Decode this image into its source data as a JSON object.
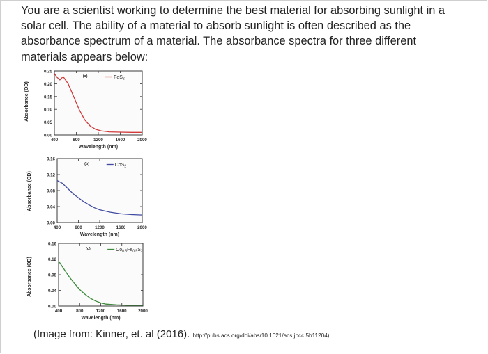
{
  "question_lines": [
    "You are a scientist working to determine the best material for absorbing sunlight in a",
    "solar cell. The ability of a material to absorb sunlight is often described as the",
    "absorbance spectrum of a material. The absorbance spectra for three different",
    "materials appears below:"
  ],
  "caption": {
    "text": "(Image from: Kinner, et. al (2016).",
    "link": "http://pubs.acs.org/doi/abs/10.1021/acs.jpcc.5b11204)"
  },
  "colors": {
    "fes2": "#d03a3a",
    "cos2": "#3f4aa0",
    "coxfe": "#3c8a3a"
  },
  "chart_data": [
    {
      "type": "line",
      "panel_label": "(a)",
      "xlabel": "Wavelength (nm)",
      "ylabel": "Absorbance (OD)",
      "xlim": [
        400,
        2000
      ],
      "ylim": [
        0,
        0.25
      ],
      "x_ticks": [
        "400",
        "800",
        "1200",
        "1600",
        "2000"
      ],
      "y_ticks": [
        "0.25",
        "0.20",
        "0.15",
        "0.10",
        "0.05",
        "0.00"
      ],
      "series": [
        {
          "name": "FeS2",
          "x": [
            400,
            450,
            500,
            560,
            650,
            750,
            850,
            950,
            1050,
            1150,
            1250,
            1400,
            1600,
            1800,
            2000
          ],
          "y": [
            0.24,
            0.225,
            0.215,
            0.228,
            0.2,
            0.15,
            0.1,
            0.06,
            0.035,
            0.022,
            0.016,
            0.012,
            0.011,
            0.01,
            0.01
          ]
        }
      ]
    },
    {
      "type": "line",
      "panel_label": "(b)",
      "xlabel": "Wavelength (nm)",
      "ylabel": "Absorbance (OD)",
      "xlim": [
        400,
        2000
      ],
      "ylim": [
        0,
        0.16
      ],
      "x_ticks": [
        "400",
        "800",
        "1200",
        "1600",
        "2000"
      ],
      "y_ticks": [
        "0.16",
        "0.12",
        "0.08",
        "0.04",
        "0.00"
      ],
      "series": [
        {
          "name": "CoS2",
          "x": [
            400,
            500,
            600,
            700,
            800,
            900,
            1000,
            1100,
            1200,
            1400,
            1600,
            1800,
            2000
          ],
          "y": [
            0.105,
            0.098,
            0.085,
            0.072,
            0.062,
            0.052,
            0.044,
            0.037,
            0.032,
            0.026,
            0.022,
            0.02,
            0.019
          ]
        }
      ]
    },
    {
      "type": "line",
      "panel_label": "(c)",
      "xlabel": "Wavelength (nm)",
      "ylabel": "Absorbance (OD)",
      "xlim": [
        400,
        2000
      ],
      "ylim": [
        0,
        0.16
      ],
      "x_ticks": [
        "400",
        "800",
        "1200",
        "1600",
        "2000"
      ],
      "y_ticks": [
        "0.16",
        "0.12",
        "0.08",
        "0.04",
        "0.00"
      ],
      "series": [
        {
          "name": "Co0.5Fe0.5S2",
          "x": [
            400,
            500,
            600,
            700,
            800,
            900,
            1000,
            1100,
            1200,
            1300,
            1500,
            1700,
            2000
          ],
          "y": [
            0.115,
            0.095,
            0.075,
            0.058,
            0.042,
            0.03,
            0.02,
            0.013,
            0.008,
            0.005,
            0.003,
            0.002,
            0.002
          ]
        }
      ]
    }
  ]
}
